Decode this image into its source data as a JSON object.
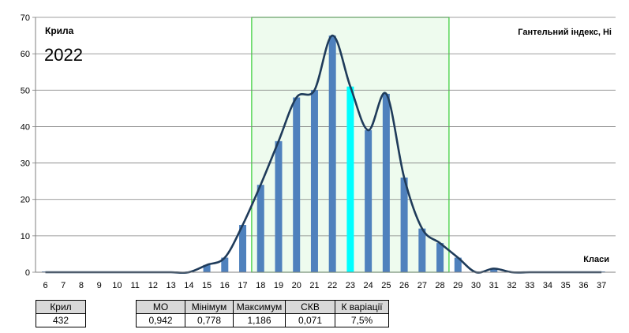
{
  "chart_data": {
    "type": "bar",
    "series_name": "Крила",
    "year": "2022",
    "title": "Гантельний індекс, Ні",
    "xlabel": "Класи",
    "ylabel": "",
    "ylim": [
      0,
      70
    ],
    "yticks": [
      0,
      10,
      20,
      30,
      40,
      50,
      60,
      70
    ],
    "categories": [
      "6",
      "7",
      "8",
      "9",
      "10",
      "11",
      "12",
      "13",
      "14",
      "15",
      "16",
      "17",
      "18",
      "19",
      "20",
      "21",
      "22",
      "23",
      "24",
      "25",
      "26",
      "27",
      "28",
      "29",
      "30",
      "31",
      "32",
      "33",
      "34",
      "35",
      "36",
      "37"
    ],
    "values": [
      0,
      0,
      0,
      0,
      0,
      0,
      0,
      0,
      0,
      2,
      4,
      13,
      24,
      36,
      48,
      50,
      65,
      51,
      39,
      49,
      26,
      12,
      8,
      4,
      0,
      1,
      0,
      0,
      0,
      0,
      0,
      0
    ],
    "highlight_category": "23",
    "shaded_range": [
      "17.5",
      "28.5"
    ],
    "curve": "smoothed",
    "colors": {
      "bar": "#4f81bd",
      "highlight_bar": "#00ffff",
      "curve": "#1f3b5a",
      "shade_fill": "#eefbee",
      "shade_stroke": "#33cc33",
      "grid": "#7f7f7f"
    },
    "grid": true
  },
  "stats": {
    "count_label": "Крил",
    "count_value": "432",
    "headers": [
      "МО",
      "Мінімум",
      "Максимум",
      "СКВ",
      "К варіації"
    ],
    "values": [
      "0,942",
      "0,778",
      "1,186",
      "0,071",
      "7,5%"
    ]
  }
}
